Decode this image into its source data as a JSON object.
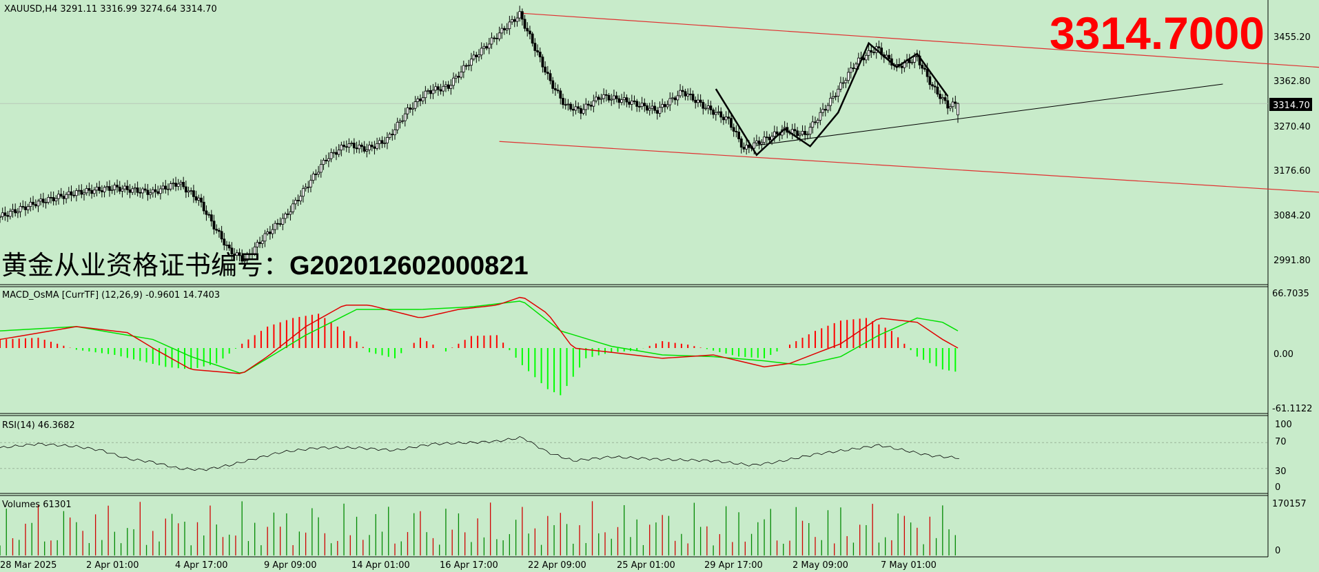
{
  "header": {
    "symbol_line": "XAUUSD,H4  3291.11 3316.99 3274.64 3314.70",
    "big_price": "3314.7000",
    "certificate": "黄金从业资格证书编号：",
    "certificate_no": "G202012602000821"
  },
  "price_panel": {
    "current_price_label": "3314.70",
    "ticks": [
      "3455.20",
      "3362.80",
      "3270.40",
      "3176.60",
      "3084.20",
      "2991.80"
    ]
  },
  "macd_panel": {
    "label": "MACD_OsMA [CurrTF] (12,26,9) -0.9601 14.7403",
    "ticks": [
      "66.7035",
      "0.00",
      "-61.1122"
    ]
  },
  "rsi_panel": {
    "label": "RSI(14) 46.3682",
    "ticks": [
      "100",
      "70",
      "30",
      "0"
    ]
  },
  "volume_panel": {
    "label": "Volumes 61301",
    "ticks": [
      "170157",
      "0"
    ]
  },
  "time_axis": [
    "28 Mar 2025",
    "2 Apr 01:00",
    "4 Apr 17:00",
    "9 Apr 09:00",
    "14 Apr 01:00",
    "16 Apr 17:00",
    "22 Apr 09:00",
    "25 Apr 01:00",
    "29 Apr 17:00",
    "2 May 09:00",
    "7 May 01:00"
  ],
  "colors": {
    "background": "#c8ebca",
    "bull_histogram": "#ff0000",
    "bear_histogram": "#00ff00",
    "signal": "#00e000",
    "channel": "#e03030"
  },
  "chart_data": {
    "type": "candlestick",
    "symbol": "XAUUSD",
    "timeframe": "H4",
    "ohlc_last": {
      "open": 3291.11,
      "high": 3316.99,
      "low": 3274.64,
      "close": 3314.7
    },
    "close_path": [
      [
        0,
        3080
      ],
      [
        15,
        3110
      ],
      [
        30,
        3130
      ],
      [
        45,
        3140
      ],
      [
        60,
        3130
      ],
      [
        70,
        3150
      ],
      [
        78,
        3115
      ],
      [
        84,
        3060
      ],
      [
        90,
        3010
      ],
      [
        96,
        2990
      ],
      [
        104,
        3040
      ],
      [
        112,
        3080
      ],
      [
        120,
        3140
      ],
      [
        128,
        3200
      ],
      [
        136,
        3230
      ],
      [
        144,
        3220
      ],
      [
        152,
        3240
      ],
      [
        160,
        3300
      ],
      [
        168,
        3340
      ],
      [
        176,
        3350
      ],
      [
        184,
        3400
      ],
      [
        192,
        3440
      ],
      [
        200,
        3480
      ],
      [
        204,
        3500
      ],
      [
        210,
        3430
      ],
      [
        216,
        3360
      ],
      [
        222,
        3310
      ],
      [
        228,
        3300
      ],
      [
        236,
        3330
      ],
      [
        246,
        3320
      ],
      [
        258,
        3300
      ],
      [
        268,
        3340
      ],
      [
        276,
        3310
      ],
      [
        286,
        3280
      ],
      [
        292,
        3220
      ],
      [
        300,
        3240
      ],
      [
        308,
        3260
      ],
      [
        316,
        3250
      ],
      [
        326,
        3320
      ],
      [
        336,
        3400
      ],
      [
        344,
        3430
      ],
      [
        352,
        3390
      ],
      [
        360,
        3410
      ],
      [
        366,
        3350
      ],
      [
        372,
        3310
      ],
      [
        376,
        3314.7
      ]
    ],
    "macd": {
      "histogram": [
        [
          0,
          10
        ],
        [
          15,
          12
        ],
        [
          30,
          -2
        ],
        [
          45,
          -8
        ],
        [
          55,
          -15
        ],
        [
          65,
          -22
        ],
        [
          75,
          -25
        ],
        [
          85,
          -18
        ],
        [
          95,
          5
        ],
        [
          105,
          25
        ],
        [
          115,
          35
        ],
        [
          125,
          40
        ],
        [
          135,
          20
        ],
        [
          145,
          -5
        ],
        [
          155,
          -12
        ],
        [
          165,
          12
        ],
        [
          175,
          -4
        ],
        [
          185,
          14
        ],
        [
          195,
          15
        ],
        [
          205,
          -20
        ],
        [
          215,
          -48
        ],
        [
          220,
          -55
        ],
        [
          230,
          -12
        ],
        [
          240,
          -5
        ],
        [
          250,
          -3
        ],
        [
          260,
          8
        ],
        [
          270,
          4
        ],
        [
          280,
          -3
        ],
        [
          290,
          -10
        ],
        [
          300,
          -12
        ],
        [
          310,
          4
        ],
        [
          320,
          20
        ],
        [
          330,
          32
        ],
        [
          340,
          35
        ],
        [
          350,
          20
        ],
        [
          360,
          -10
        ],
        [
          370,
          -25
        ],
        [
          376,
          -28
        ]
      ],
      "macd_line": [
        [
          0,
          10
        ],
        [
          30,
          25
        ],
        [
          50,
          18
        ],
        [
          60,
          0
        ],
        [
          75,
          -25
        ],
        [
          95,
          -30
        ],
        [
          105,
          -10
        ],
        [
          120,
          25
        ],
        [
          135,
          50
        ],
        [
          145,
          50
        ],
        [
          165,
          35
        ],
        [
          180,
          45
        ],
        [
          195,
          50
        ],
        [
          205,
          60
        ],
        [
          215,
          40
        ],
        [
          225,
          0
        ],
        [
          240,
          -5
        ],
        [
          260,
          -12
        ],
        [
          280,
          -8
        ],
        [
          300,
          -22
        ],
        [
          310,
          -18
        ],
        [
          330,
          5
        ],
        [
          345,
          35
        ],
        [
          360,
          30
        ],
        [
          370,
          10
        ],
        [
          376,
          0
        ]
      ],
      "signal_line": [
        [
          0,
          20
        ],
        [
          30,
          25
        ],
        [
          60,
          10
        ],
        [
          75,
          -10
        ],
        [
          95,
          -30
        ],
        [
          120,
          15
        ],
        [
          140,
          45
        ],
        [
          165,
          45
        ],
        [
          185,
          48
        ],
        [
          205,
          55
        ],
        [
          220,
          20
        ],
        [
          240,
          2
        ],
        [
          260,
          -8
        ],
        [
          280,
          -10
        ],
        [
          300,
          -15
        ],
        [
          315,
          -20
        ],
        [
          330,
          -10
        ],
        [
          345,
          15
        ],
        [
          360,
          35
        ],
        [
          370,
          30
        ],
        [
          376,
          20
        ]
      ]
    },
    "rsi": [
      [
        0,
        62
      ],
      [
        15,
        68
      ],
      [
        30,
        64
      ],
      [
        40,
        58
      ],
      [
        50,
        45
      ],
      [
        60,
        40
      ],
      [
        70,
        30
      ],
      [
        80,
        28
      ],
      [
        90,
        35
      ],
      [
        100,
        45
      ],
      [
        110,
        55
      ],
      [
        125,
        62
      ],
      [
        140,
        62
      ],
      [
        155,
        58
      ],
      [
        170,
        68
      ],
      [
        185,
        70
      ],
      [
        195,
        72
      ],
      [
        205,
        78
      ],
      [
        215,
        55
      ],
      [
        225,
        42
      ],
      [
        240,
        48
      ],
      [
        260,
        44
      ],
      [
        280,
        42
      ],
      [
        295,
        35
      ],
      [
        305,
        40
      ],
      [
        320,
        52
      ],
      [
        335,
        60
      ],
      [
        345,
        66
      ],
      [
        355,
        58
      ],
      [
        365,
        50
      ],
      [
        376,
        46.37
      ]
    ],
    "volume_max": 170157,
    "volume_last": 61301
  }
}
